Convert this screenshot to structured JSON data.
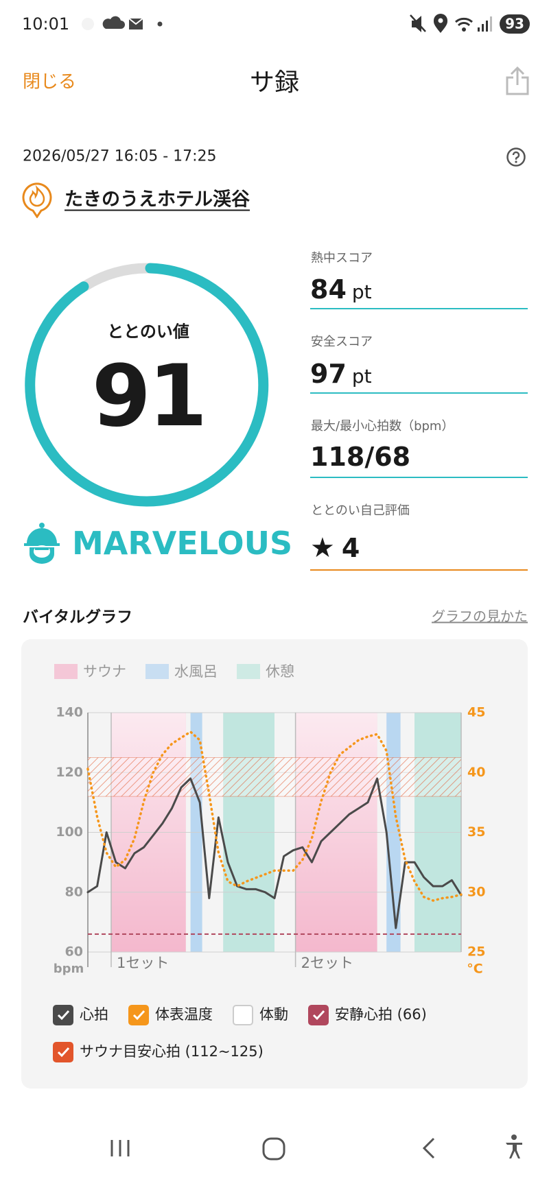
{
  "status_bar": {
    "time": "10:01",
    "battery": "93"
  },
  "header": {
    "close": "閉じる",
    "title": "サ録"
  },
  "session": {
    "datetime": "2026/05/27 16:05 - 17:25",
    "facility": "たきのうえホテル渓谷"
  },
  "score": {
    "label": "ととのい値",
    "value": "91",
    "rank": "MARVELOUS"
  },
  "metrics": [
    {
      "label": "熱中スコア",
      "value": "84",
      "unit": "pt"
    },
    {
      "label": "安全スコア",
      "value": "97",
      "unit": "pt"
    },
    {
      "label": "最大/最小心拍数（bpm）",
      "value": "118/68"
    },
    {
      "label": "ととのい自己評価",
      "value": "4"
    }
  ],
  "vital": {
    "title": "バイタルグラフ",
    "help_link": "グラフの見かた"
  },
  "chart_data": {
    "type": "line",
    "phases": [
      {
        "name": "サウナ",
        "color": "#f4a9c3",
        "intervals": [
          [
            5,
            21
          ],
          [
            44.5,
            62
          ]
        ]
      },
      {
        "name": "水風呂",
        "color": "#aacff0",
        "intervals": [
          [
            22,
            24.5
          ],
          [
            64,
            67
          ]
        ]
      },
      {
        "name": "休憩",
        "color": "#b4e2d9",
        "intervals": [
          [
            29,
            40
          ],
          [
            70,
            80
          ]
        ]
      }
    ],
    "sets": [
      {
        "label": "1セット",
        "start": 5
      },
      {
        "label": "2セット",
        "start": 44.5
      }
    ],
    "xlim": [
      0,
      80
    ],
    "x": [
      0,
      2,
      4,
      6,
      8,
      10,
      12,
      14,
      16,
      18,
      20,
      22,
      24,
      26,
      28,
      30,
      32,
      34,
      36,
      38,
      40,
      42,
      44,
      46,
      48,
      50,
      52,
      54,
      56,
      58,
      60,
      62,
      64,
      66,
      68,
      70,
      72,
      74,
      76,
      78,
      80
    ],
    "ylabel": "bpm",
    "ylim": [
      60,
      140
    ],
    "yticks": [
      60,
      80,
      100,
      120,
      140
    ],
    "y2label": "°C",
    "y2lim": [
      25,
      45
    ],
    "y2ticks": [
      25,
      30,
      35,
      40,
      45
    ],
    "series": [
      {
        "name": "心拍",
        "color": "#4a4a4a",
        "checked": true,
        "values": [
          80,
          82,
          100,
          90,
          88,
          93,
          95,
          99,
          103,
          108,
          115,
          118,
          110,
          78,
          105,
          90,
          82,
          81,
          81,
          80,
          78,
          92,
          94,
          95,
          90,
          97,
          100,
          103,
          106,
          108,
          110,
          118,
          100,
          68,
          90,
          90,
          85,
          82,
          82,
          84,
          79
        ]
      },
      {
        "name": "体表温度",
        "color": "#f5961b",
        "axis": "y2",
        "checked": true,
        "values": [
          40.3,
          36.3,
          33.3,
          32.1,
          32.7,
          34.5,
          37.6,
          40,
          41.5,
          42.4,
          42.9,
          43.4,
          42.7,
          38.2,
          33.3,
          30.9,
          30.5,
          30.9,
          31.2,
          31.5,
          31.8,
          31.8,
          31.8,
          32.7,
          34.5,
          37.6,
          40,
          41.5,
          42.1,
          42.7,
          43,
          43.2,
          41.8,
          36.3,
          32.7,
          30.9,
          29.6,
          29.3,
          29.5,
          29.6,
          29.8
        ]
      }
    ],
    "motion": {
      "name": "体動",
      "checked": false
    },
    "reference_lines": [
      {
        "name": "安静心拍 (66)",
        "value": 66,
        "color": "#b0475d",
        "checked": true
      }
    ],
    "reference_bands": [
      {
        "name": "サウナ目安心拍 (112~125)",
        "from": 112,
        "to": 125,
        "color": "#e2552b",
        "checked": true
      }
    ]
  }
}
